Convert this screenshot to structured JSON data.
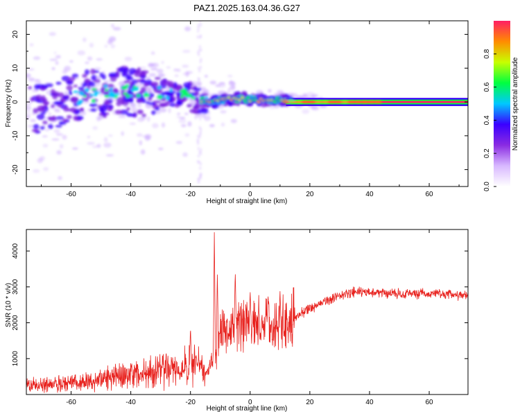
{
  "title": "PAZ1.2025.163.04.36.G27",
  "chart_data": [
    {
      "type": "heatmap",
      "xlabel": "Height of straight line (km)",
      "ylabel": "Frequency (Hz)",
      "xlim": [
        -75,
        73
      ],
      "ylim": [
        -25,
        24
      ],
      "xticks": [
        -60,
        -40,
        -20,
        0,
        20,
        40,
        60
      ],
      "yticks": [
        -20,
        -10,
        0,
        10,
        20
      ],
      "colorbar": {
        "label": "Normalized spectral amplitude",
        "range": [
          0,
          1
        ],
        "ticks": [
          0.0,
          0.2,
          0.4,
          0.6,
          0.8
        ],
        "colors": [
          "#ffffff",
          "#d8b8ff",
          "#8a2be2",
          "#3a00ff",
          "#00c8ff",
          "#00ff40",
          "#c8ff00",
          "#ff8c00",
          "#ff1e64"
        ]
      },
      "ridge": [
        {
          "x": -72,
          "y": -2
        },
        {
          "x": -62,
          "y": 0
        },
        {
          "x": -55,
          "y": 2
        },
        {
          "x": -45,
          "y": 3
        },
        {
          "x": -35,
          "y": 3
        },
        {
          "x": -25,
          "y": 2.5
        },
        {
          "x": -18,
          "y": 1
        },
        {
          "x": -12,
          "y": 0
        },
        {
          "x": -5,
          "y": 1
        },
        {
          "x": 5,
          "y": 0.5
        },
        {
          "x": 12,
          "y": 0.8
        },
        {
          "x": 20,
          "y": 0
        },
        {
          "x": 40,
          "y": 0
        },
        {
          "x": 73,
          "y": 0
        }
      ]
    },
    {
      "type": "line",
      "xlabel": "Height of straight line (km)",
      "ylabel": "SNR (10 * v/v)",
      "xlim": [
        -75,
        73
      ],
      "ylim": [
        0,
        4600
      ],
      "xticks": [
        -60,
        -40,
        -20,
        0,
        20,
        40,
        60
      ],
      "yticks": [
        1000,
        2000,
        3000,
        4000
      ],
      "color": "#e8231f",
      "envelope": [
        {
          "x": -75,
          "y": 250
        },
        {
          "x": -65,
          "y": 300
        },
        {
          "x": -55,
          "y": 350
        },
        {
          "x": -45,
          "y": 500
        },
        {
          "x": -35,
          "y": 600
        },
        {
          "x": -25,
          "y": 700
        },
        {
          "x": -18,
          "y": 800
        },
        {
          "x": -14,
          "y": 600
        },
        {
          "x": -10,
          "y": 1700
        },
        {
          "x": -5,
          "y": 1900
        },
        {
          "x": 0,
          "y": 1900
        },
        {
          "x": 5,
          "y": 2000
        },
        {
          "x": 10,
          "y": 1950
        },
        {
          "x": 15,
          "y": 2150
        },
        {
          "x": 20,
          "y": 2400
        },
        {
          "x": 25,
          "y": 2600
        },
        {
          "x": 30,
          "y": 2750
        },
        {
          "x": 35,
          "y": 2850
        },
        {
          "x": 40,
          "y": 2850
        },
        {
          "x": 50,
          "y": 2820
        },
        {
          "x": 60,
          "y": 2800
        },
        {
          "x": 73,
          "y": 2750
        }
      ],
      "peaks": [
        {
          "x": -12,
          "y": 4600
        },
        {
          "x": -11,
          "y": 3400
        },
        {
          "x": -5,
          "y": 3450
        },
        {
          "x": -20,
          "y": 1900
        },
        {
          "x": 0,
          "y": 2900
        },
        {
          "x": 6,
          "y": 2800
        },
        {
          "x": 10,
          "y": 2900
        }
      ]
    }
  ]
}
